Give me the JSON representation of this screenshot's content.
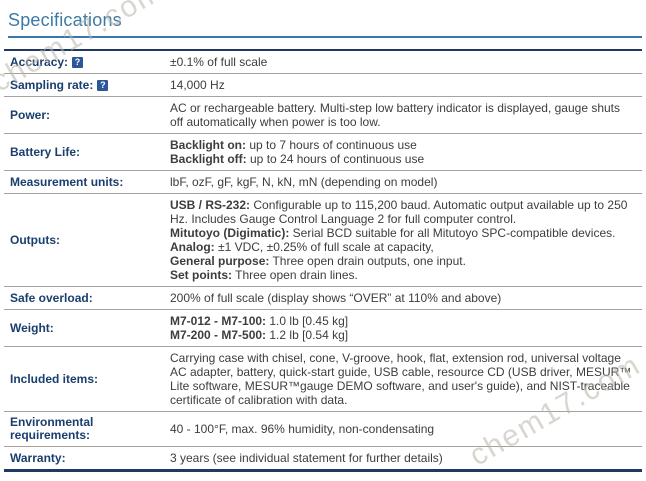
{
  "header": {
    "title": "Specifications"
  },
  "watermarks": [
    {
      "text": "chem17.com"
    },
    {
      "text": "chem17.com"
    }
  ],
  "help_icon": {
    "glyph": "?"
  },
  "colors": {
    "heading": "#3c7aa5",
    "heading_rule": "#3a76ad",
    "label_text": "#1a3e6e",
    "table_border": "#1f3864",
    "row_separator": "#a8a29a",
    "help_bg": "#2b579a",
    "watermark": "#bab4aa"
  },
  "table": {
    "rows": [
      {
        "label": "Accuracy:",
        "help": true,
        "value": [
          [
            {
              "t": "±0.1% of full scale"
            }
          ]
        ]
      },
      {
        "label": "Sampling rate:",
        "help": true,
        "value": [
          [
            {
              "t": "14,000 Hz"
            }
          ]
        ]
      },
      {
        "label": "Power:",
        "help": false,
        "value": [
          [
            {
              "t": "AC or rechargeable battery. Multi-step low battery indicator is displayed, gauge shuts off automatically when power is too low."
            }
          ]
        ]
      },
      {
        "label": "Battery Life:",
        "help": false,
        "value": [
          [
            {
              "t": "Backlight on:",
              "b": true
            },
            {
              "t": " up to 7 hours of continuous use"
            }
          ],
          [
            {
              "t": "Backlight off:",
              "b": true
            },
            {
              "t": " up to 24 hours of continuous use"
            }
          ]
        ]
      },
      {
        "label": "Measurement units:",
        "help": false,
        "value": [
          [
            {
              "t": "lbF, ozF, gF, kgF, N, kN, mN (depending on model)"
            }
          ]
        ]
      },
      {
        "label": "Outputs:",
        "help": false,
        "value": [
          [
            {
              "t": "USB / RS-232:",
              "b": true
            },
            {
              "t": " Configurable up to 115,200 baud. Automatic output available up to 250 Hz. Includes Gauge Control Language 2 for full computer control."
            }
          ],
          [
            {
              "t": "Mitutoyo (Digimatic):",
              "b": true
            },
            {
              "t": " Serial BCD suitable for all Mitutoyo SPC-compatible devices."
            }
          ],
          [
            {
              "t": "Analog:",
              "b": true
            },
            {
              "t": " ±1 VDC, ±0.25% of full scale at capacity,"
            }
          ],
          [
            {
              "t": "General purpose:",
              "b": true
            },
            {
              "t": " Three open drain outputs, one input."
            }
          ],
          [
            {
              "t": "Set points:",
              "b": true
            },
            {
              "t": " Three open drain lines."
            }
          ]
        ]
      },
      {
        "label": "Safe overload:",
        "help": false,
        "value": [
          [
            {
              "t": "200% of full scale (display shows “OVER” at 110% and above)"
            }
          ]
        ]
      },
      {
        "label": "Weight:",
        "help": false,
        "value": [
          [
            {
              "t": "M7-012 - M7-100:",
              "b": true
            },
            {
              "t": " 1.0 lb [0.45 kg]"
            }
          ],
          [
            {
              "t": "M7-200 - M7-500:",
              "b": true
            },
            {
              "t": " 1.2 lb [0.54 kg]"
            }
          ]
        ]
      },
      {
        "label": "Included items:",
        "help": false,
        "value": [
          [
            {
              "t": "Carrying case with chisel, cone, V-groove, hook, flat, extension rod, universal voltage AC adapter, battery, quick-start guide, USB cable, resource CD (USB driver, MESUR™ Lite software, MESUR™gauge DEMO software, and user's guide), and NIST-traceable certificate of calibration with data."
            }
          ]
        ]
      },
      {
        "label": "Environmental requirements:",
        "help": false,
        "value": [
          [
            {
              "t": "40 - 100°F, max. 96% humidity, non-condensating"
            }
          ]
        ]
      },
      {
        "label": "Warranty:",
        "help": false,
        "value": [
          [
            {
              "t": "3 years (see individual statement for further details)"
            }
          ]
        ]
      }
    ]
  }
}
